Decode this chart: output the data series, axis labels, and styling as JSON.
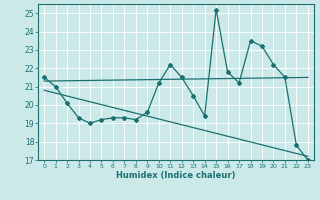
{
  "xlabel": "Humidex (Indice chaleur)",
  "ylabel": "",
  "xlim": [
    -0.5,
    23.5
  ],
  "ylim": [
    17,
    25.5
  ],
  "yticks": [
    17,
    18,
    19,
    20,
    21,
    22,
    23,
    24,
    25
  ],
  "xticks": [
    0,
    1,
    2,
    3,
    4,
    5,
    6,
    7,
    8,
    9,
    10,
    11,
    12,
    13,
    14,
    15,
    16,
    17,
    18,
    19,
    20,
    21,
    22,
    23
  ],
  "bg_color": "#cce9e9",
  "line_color": "#1a7070",
  "grid_color": "#b0d8d8",
  "series1": [
    21.5,
    21.0,
    20.1,
    19.3,
    19.0,
    19.2,
    19.3,
    19.3,
    19.2,
    19.6,
    21.2,
    22.2,
    21.5,
    20.5,
    19.4,
    25.2,
    21.8,
    21.2,
    23.5,
    23.2,
    22.2,
    21.5,
    17.8,
    17.0
  ],
  "series2_x": [
    0,
    23
  ],
  "series2_y": [
    21.3,
    21.5
  ],
  "series3_x": [
    0,
    23
  ],
  "series3_y": [
    20.8,
    17.2
  ]
}
